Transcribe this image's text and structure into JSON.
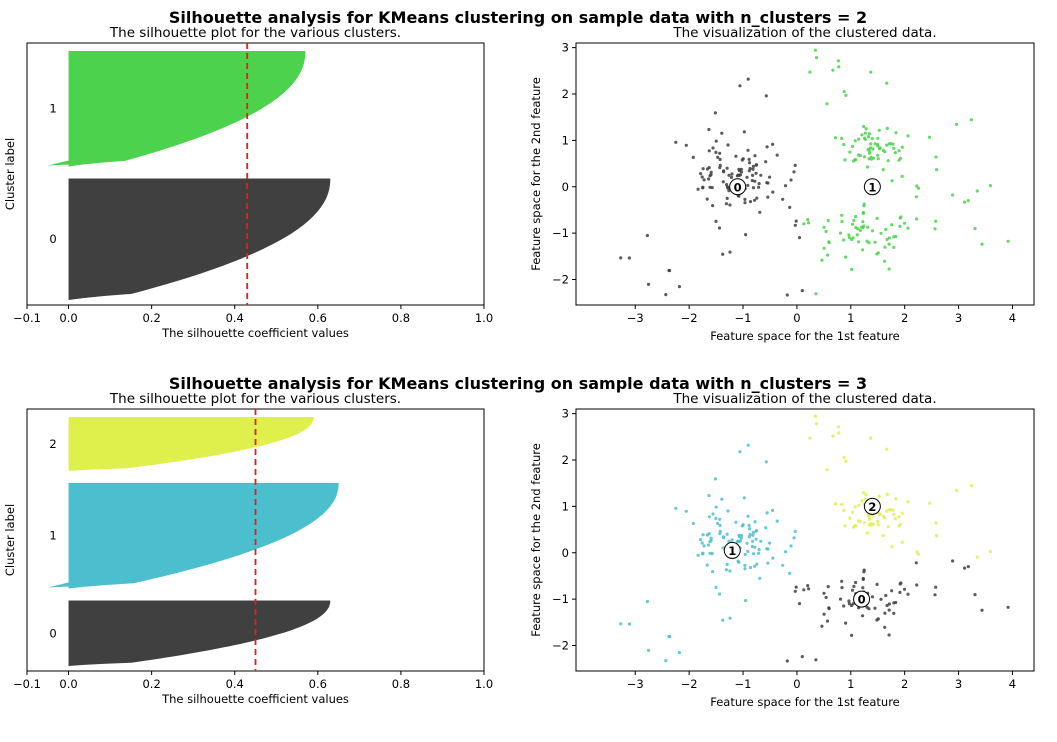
{
  "chart_data": [
    {
      "type": "silhouette",
      "suptitle": "Silhouette analysis for KMeans clustering on sample data with n_clusters = 2",
      "title": "The silhouette plot for the various clusters.",
      "xlabel": "The silhouette coefficient values",
      "ylabel": "Cluster label",
      "xlim": [
        -0.1,
        1.0
      ],
      "xticks": [
        "−0.1",
        "0.0",
        "0.2",
        "0.4",
        "0.6",
        "0.8",
        "1.0"
      ],
      "average_silhouette": 0.43,
      "clusters": [
        {
          "label": "0",
          "color": "#404040",
          "max_value": 0.63,
          "min_value": 0.0
        },
        {
          "label": "1",
          "color": "#4cd24c",
          "max_value": 0.57,
          "min_value": -0.05
        }
      ]
    },
    {
      "type": "scatter",
      "title": "The visualization of the clustered data.",
      "xlabel": "Feature space for the 1st feature",
      "ylabel": "Feature space for the 2nd feature",
      "xlim": [
        -4.1,
        4.4
      ],
      "ylim": [
        -2.55,
        3.1
      ],
      "xticks": [
        "−3",
        "−2",
        "−1",
        "0",
        "1",
        "2",
        "3",
        "4"
      ],
      "yticks": [
        "−2",
        "−1",
        "0",
        "1",
        "2",
        "3"
      ],
      "centers": [
        {
          "label": "0",
          "x": -1.1,
          "y": 0.0,
          "color": "#404040"
        },
        {
          "label": "1",
          "x": 1.4,
          "y": 0.0,
          "color": "#4cd24c"
        }
      ]
    },
    {
      "type": "silhouette",
      "suptitle": "Silhouette analysis for KMeans clustering on sample data with n_clusters = 3",
      "title": "The silhouette plot for the various clusters.",
      "xlabel": "The silhouette coefficient values",
      "ylabel": "Cluster label",
      "xlim": [
        -0.1,
        1.0
      ],
      "xticks": [
        "−0.1",
        "0.0",
        "0.2",
        "0.4",
        "0.6",
        "0.8",
        "1.0"
      ],
      "average_silhouette": 0.45,
      "clusters": [
        {
          "label": "0",
          "color": "#404040",
          "max_value": 0.63,
          "min_value": 0.0
        },
        {
          "label": "1",
          "color": "#4cbfcf",
          "max_value": 0.65,
          "min_value": -0.05
        },
        {
          "label": "2",
          "color": "#dff04c",
          "max_value": 0.59,
          "min_value": 0.0
        }
      ]
    },
    {
      "type": "scatter",
      "title": "The visualization of the clustered data.",
      "xlabel": "Feature space for the 1st feature",
      "ylabel": "Feature space for the 2nd feature",
      "xlim": [
        -4.1,
        4.4
      ],
      "ylim": [
        -2.55,
        3.1
      ],
      "xticks": [
        "−3",
        "−2",
        "−1",
        "0",
        "1",
        "2",
        "3",
        "4"
      ],
      "yticks": [
        "−2",
        "−1",
        "0",
        "1",
        "2",
        "3"
      ],
      "centers": [
        {
          "label": "0",
          "x": 1.2,
          "y": -1.0,
          "color": "#404040"
        },
        {
          "label": "1",
          "x": -1.2,
          "y": 0.05,
          "color": "#4cbfcf"
        },
        {
          "label": "2",
          "x": 1.4,
          "y": 1.0,
          "color": "#dff04c"
        }
      ]
    }
  ]
}
